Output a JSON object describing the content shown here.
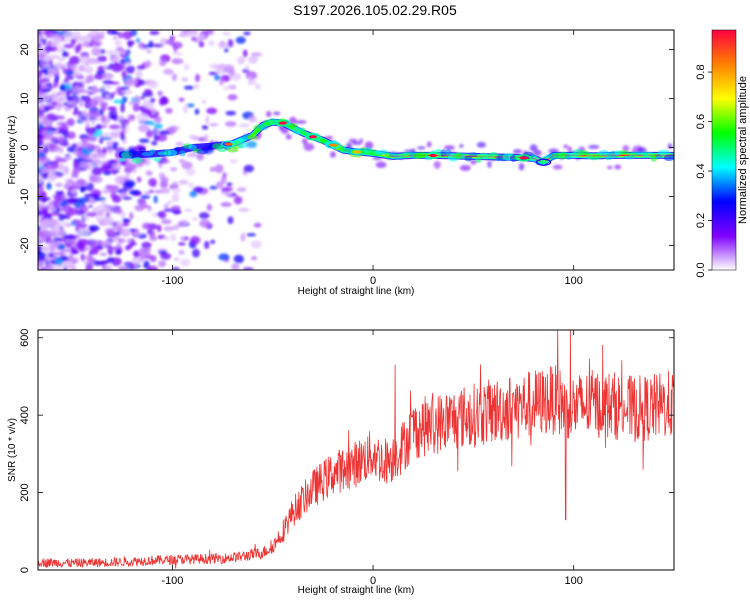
{
  "title": "S197.2026.105.02.29.R05",
  "chart_data": [
    {
      "type": "heatmap",
      "name": "spectrogram",
      "xlabel": "Height of straight line (km)",
      "ylabel": "Frequency (Hz)",
      "xlim": [
        -167,
        150
      ],
      "ylim": [
        -25,
        24
      ],
      "xticks": [
        -100,
        0,
        100
      ],
      "yticks": [
        -20,
        -10,
        0,
        10,
        20
      ],
      "colorbar": {
        "label": "Normalized spectral amplitude",
        "range": [
          0,
          0.97
        ],
        "ticks": [
          0.0,
          0.2,
          0.4,
          0.6,
          0.8
        ],
        "colors": [
          "#ffffff",
          "#7f00ff",
          "#0000ff",
          "#00ffff",
          "#00ff00",
          "#ffff00",
          "#ff8000",
          "#ff0040"
        ]
      },
      "ridge": {
        "x": [
          -120,
          -110,
          -100,
          -90,
          -80,
          -70,
          -60,
          -55,
          -50,
          -45,
          -40,
          -35,
          -30,
          -25,
          -20,
          -15,
          -10,
          -5,
          0,
          10,
          20,
          30,
          50,
          60,
          70,
          75,
          80,
          85,
          90,
          100,
          110,
          120,
          140,
          150
        ],
        "y": [
          -1.5,
          -1.3,
          -1.0,
          0.0,
          0.3,
          0.8,
          2.5,
          4.5,
          5.2,
          5.0,
          4.0,
          3.0,
          2.2,
          1.5,
          0.5,
          -0.5,
          -0.8,
          -1.0,
          -1.2,
          -1.8,
          -1.6,
          -1.6,
          -1.8,
          -1.9,
          -2.0,
          -2.1,
          -2.2,
          -3.0,
          -1.6,
          -1.6,
          -1.7,
          -1.6,
          -1.6,
          -1.6
        ]
      }
    },
    {
      "type": "line",
      "name": "snr",
      "xlabel": "Height of straight line (km)",
      "ylabel": "SNR (10 * v/v)",
      "xlim": [
        -167,
        150
      ],
      "ylim": [
        0,
        620
      ],
      "xticks": [
        -100,
        0,
        100
      ],
      "yticks": [
        0,
        200,
        400,
        600
      ],
      "color": "#ee3333",
      "series": [
        {
          "name": "SNR",
          "x": [
            -167,
            -150,
            -130,
            -110,
            -90,
            -75,
            -65,
            -55,
            -50,
            -45,
            -40,
            -35,
            -30,
            -25,
            -20,
            -15,
            -10,
            -5,
            0,
            5,
            10,
            15,
            20,
            25,
            30,
            40,
            50,
            60,
            70,
            80,
            90,
            100,
            110,
            120,
            130,
            140,
            150
          ],
          "y": [
            20,
            18,
            20,
            25,
            28,
            30,
            35,
            45,
            60,
            100,
            150,
            180,
            210,
            230,
            250,
            260,
            270,
            285,
            300,
            280,
            290,
            320,
            360,
            370,
            375,
            390,
            400,
            410,
            420,
            430,
            440,
            420,
            430,
            425,
            415,
            420,
            430
          ]
        }
      ],
      "spikes": [
        {
          "x": 11,
          "y": 530
        },
        {
          "x": 92,
          "y": 625
        },
        {
          "x": 96,
          "y": 130
        }
      ]
    }
  ]
}
